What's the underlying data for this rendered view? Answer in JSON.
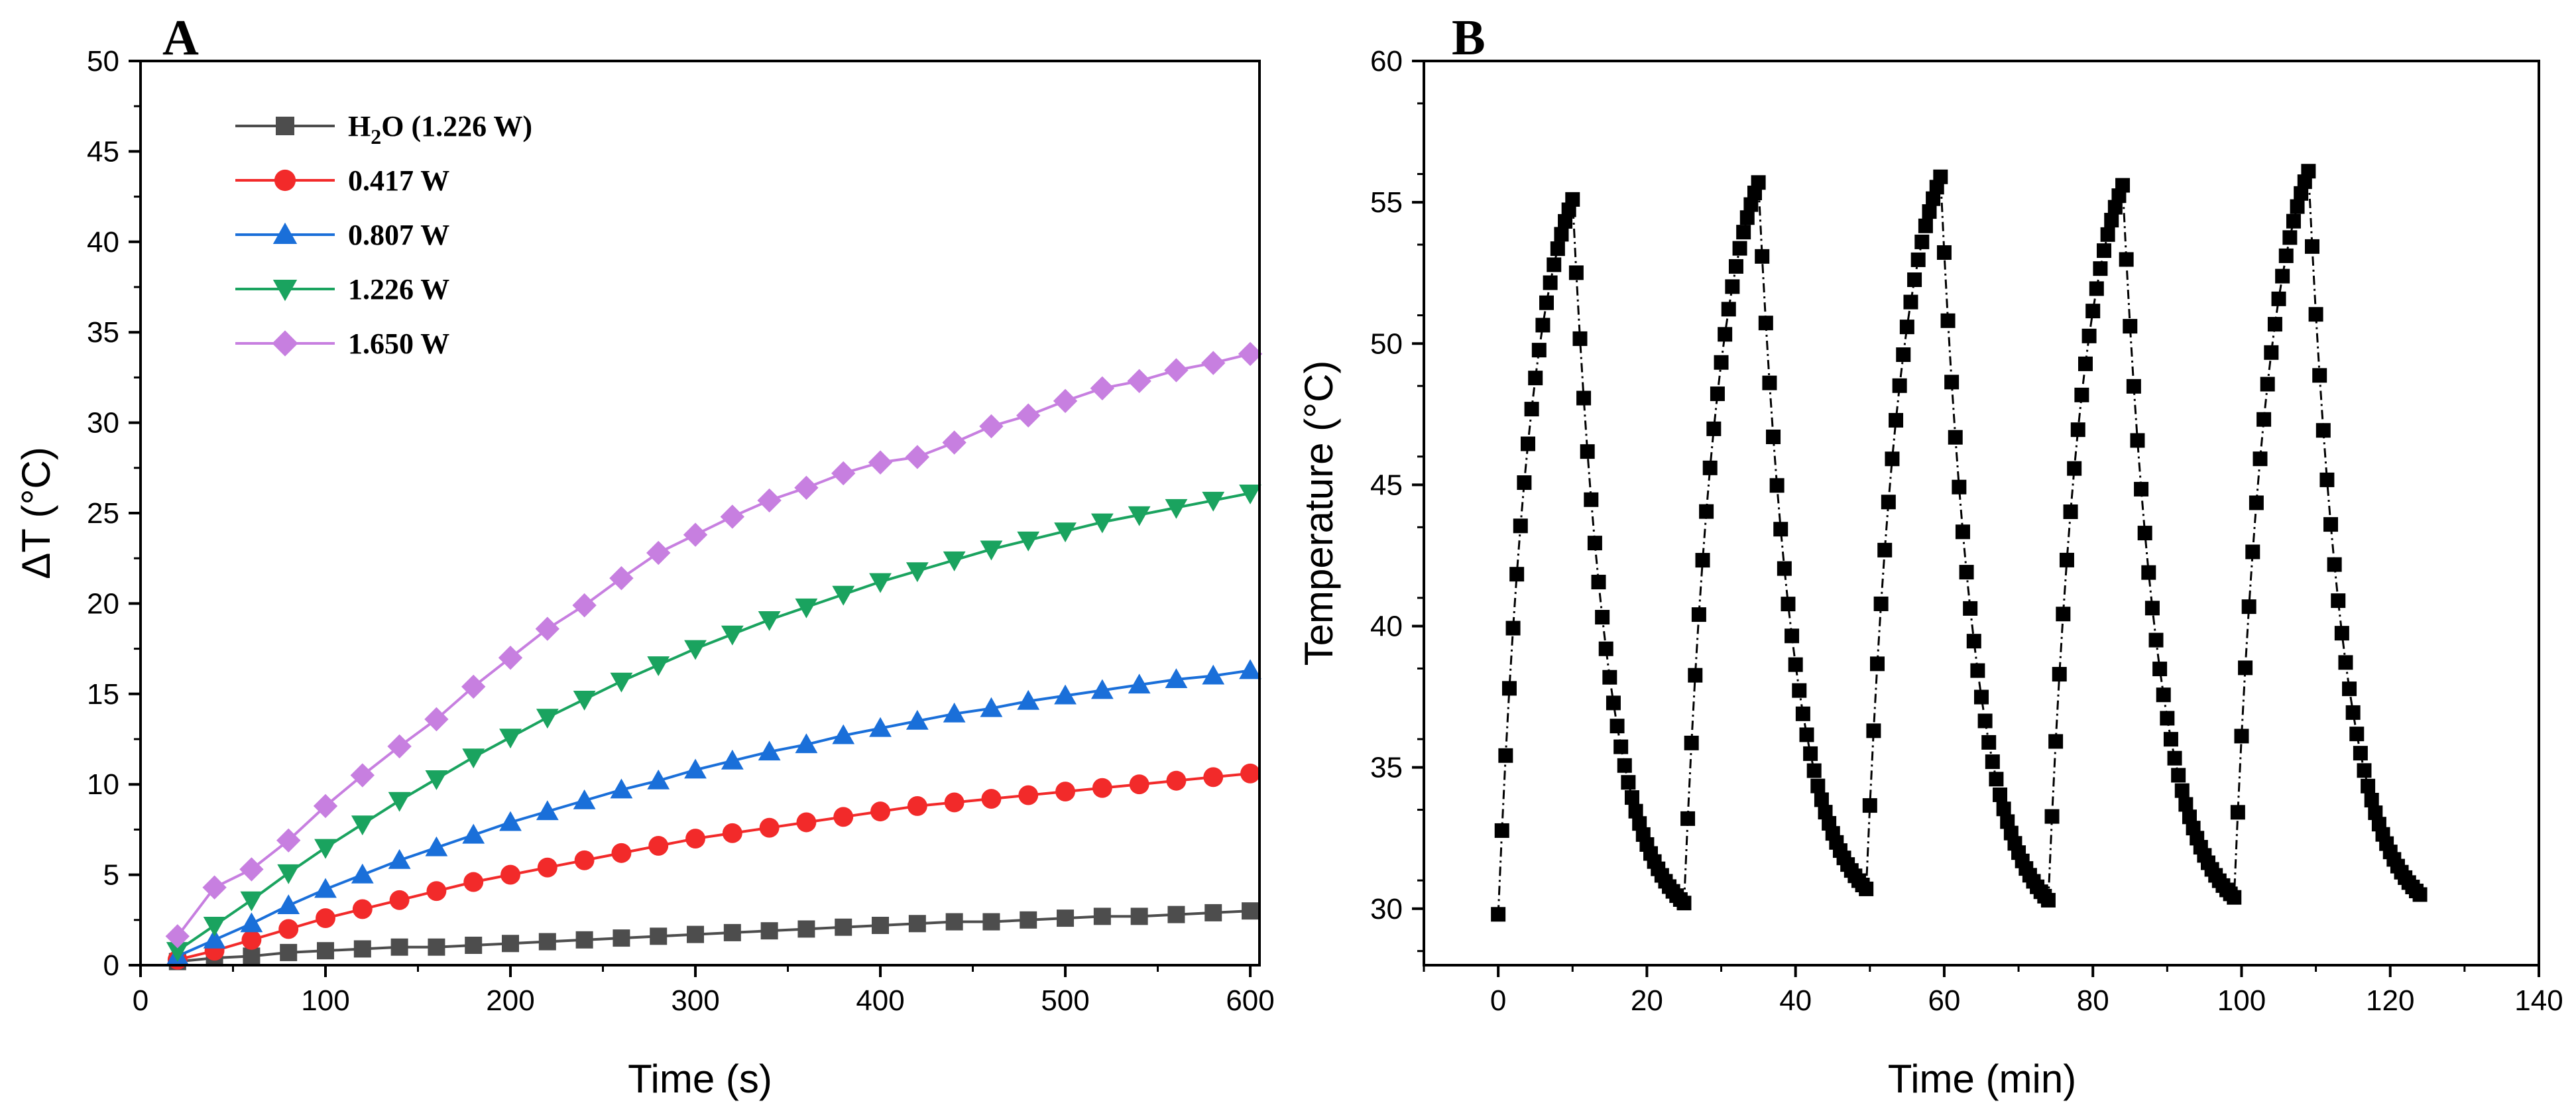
{
  "chart_data": [
    {
      "panel": "A",
      "type": "line",
      "xlabel": "Time (s)",
      "ylabel": "ΔT (°C)",
      "xlim": [
        0,
        605
      ],
      "ylim": [
        0,
        50
      ],
      "xticks": [
        0,
        100,
        200,
        300,
        400,
        500,
        600
      ],
      "yticks": [
        0,
        5,
        10,
        15,
        20,
        25,
        30,
        35,
        40,
        45,
        50
      ],
      "legend_position": "top-left",
      "x": [
        20,
        40,
        60,
        80,
        100,
        120,
        140,
        160,
        180,
        200,
        220,
        240,
        260,
        280,
        300,
        320,
        340,
        360,
        380,
        400,
        420,
        440,
        460,
        480,
        500,
        520,
        540,
        560,
        580,
        600
      ],
      "series": [
        {
          "name": "H2O (1.226 W)",
          "legend_main": "H",
          "legend_sub": "2",
          "legend_rest": "O (1.226 W)",
          "color": "#4d4d4d",
          "marker": "square",
          "values": [
            0.2,
            0.4,
            0.5,
            0.7,
            0.8,
            0.9,
            1.0,
            1.0,
            1.1,
            1.2,
            1.3,
            1.4,
            1.5,
            1.6,
            1.7,
            1.8,
            1.9,
            2.0,
            2.1,
            2.2,
            2.3,
            2.4,
            2.4,
            2.5,
            2.6,
            2.7,
            2.7,
            2.8,
            2.9,
            3.0
          ]
        },
        {
          "name": "0.417 W",
          "color": "#f22a2a",
          "marker": "circle",
          "values": [
            0.3,
            0.8,
            1.4,
            2.0,
            2.6,
            3.1,
            3.6,
            4.1,
            4.6,
            5.0,
            5.4,
            5.8,
            6.2,
            6.6,
            7.0,
            7.3,
            7.6,
            7.9,
            8.2,
            8.5,
            8.8,
            9.0,
            9.2,
            9.4,
            9.6,
            9.8,
            10.0,
            10.2,
            10.4,
            10.6
          ]
        },
        {
          "name": "0.807 W",
          "color": "#1a6fd9",
          "marker": "triangle-up",
          "values": [
            0.5,
            1.4,
            2.3,
            3.3,
            4.2,
            5.0,
            5.8,
            6.5,
            7.2,
            7.9,
            8.5,
            9.1,
            9.7,
            10.2,
            10.8,
            11.3,
            11.8,
            12.2,
            12.7,
            13.1,
            13.5,
            13.9,
            14.2,
            14.6,
            14.9,
            15.2,
            15.5,
            15.8,
            16.0,
            16.3
          ]
        },
        {
          "name": "1.226 W",
          "color": "#1aa35f",
          "marker": "triangle-down",
          "values": [
            0.8,
            2.2,
            3.6,
            5.1,
            6.5,
            7.8,
            9.1,
            10.3,
            11.5,
            12.6,
            13.7,
            14.7,
            15.7,
            16.6,
            17.5,
            18.3,
            19.1,
            19.8,
            20.5,
            21.2,
            21.8,
            22.4,
            23.0,
            23.5,
            24.0,
            24.5,
            24.9,
            25.3,
            25.7,
            26.1
          ]
        },
        {
          "name": "1.650 W",
          "color": "#c77fe0",
          "marker": "diamond",
          "values": [
            1.6,
            4.3,
            5.3,
            6.9,
            8.8,
            10.5,
            12.1,
            13.6,
            15.4,
            17.0,
            18.6,
            19.9,
            21.4,
            22.8,
            23.8,
            24.8,
            25.7,
            26.4,
            27.2,
            27.8,
            28.1,
            28.9,
            29.8,
            30.4,
            31.2,
            31.9,
            32.3,
            32.9,
            33.3,
            33.8
          ]
        }
      ]
    },
    {
      "panel": "B",
      "type": "line",
      "xlabel": "Time (min)",
      "ylabel": "Temperature (°C)",
      "xlim": [
        -10,
        140
      ],
      "ylim": [
        28,
        60
      ],
      "xticks": [
        0,
        20,
        40,
        60,
        80,
        100,
        120,
        140
      ],
      "yticks": [
        30,
        35,
        40,
        45,
        50,
        55,
        60
      ],
      "series": [
        {
          "name": "Temperature",
          "color": "#000000",
          "marker": "square",
          "line_style": "dash-dot",
          "cycles": [
            {
              "heat_start": 0,
              "peak_time": 10,
              "cool_end": 25,
              "t_start": 29.8,
              "t_peak": 55.1,
              "t_end": 30.2
            },
            {
              "heat_start": 25,
              "peak_time": 35,
              "cool_end": 49.5,
              "t_start": 30.2,
              "t_peak": 55.7,
              "t_end": 30.7
            },
            {
              "heat_start": 49.5,
              "peak_time": 59.5,
              "cool_end": 74,
              "t_start": 30.7,
              "t_peak": 55.9,
              "t_end": 30.3
            },
            {
              "heat_start": 74,
              "peak_time": 84,
              "cool_end": 99,
              "t_start": 30.3,
              "t_peak": 55.6,
              "t_end": 30.4
            },
            {
              "heat_start": 99,
              "peak_time": 109,
              "cool_end": 124,
              "t_start": 30.4,
              "t_peak": 56.1,
              "t_end": 30.5
            }
          ]
        }
      ]
    }
  ]
}
